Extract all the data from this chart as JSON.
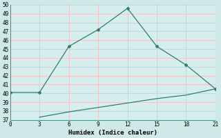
{
  "xlabel": "Humidex (Indice chaleur)",
  "bg_color": "#cfe8e8",
  "plot_bg_color": "#d6eeee",
  "grid_color": "#e8c8c8",
  "line_color": "#2e7d72",
  "xlim": [
    0,
    21
  ],
  "ylim": [
    37,
    50
  ],
  "xticks": [
    0,
    3,
    6,
    9,
    12,
    15,
    18,
    21
  ],
  "yticks": [
    37,
    38,
    39,
    40,
    41,
    42,
    43,
    44,
    45,
    46,
    47,
    48,
    49,
    50
  ],
  "upper_x": [
    0,
    3,
    6,
    9,
    12,
    15,
    18,
    21
  ],
  "upper_y": [
    40.1,
    40.1,
    45.3,
    47.2,
    49.6,
    45.3,
    43.2,
    40.5
  ],
  "lower_x": [
    3,
    6,
    9,
    12,
    15,
    18,
    21
  ],
  "lower_y": [
    37.3,
    37.9,
    38.4,
    38.9,
    39.4,
    39.8,
    40.5
  ]
}
